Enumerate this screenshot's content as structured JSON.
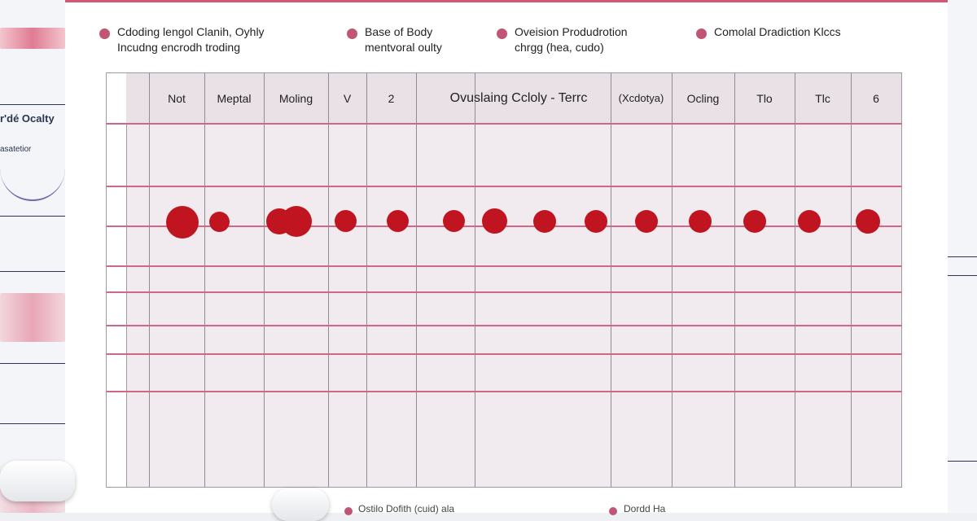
{
  "left_panel": {
    "text_line1": "r'dé Ocalty",
    "text_line2": "asatetior"
  },
  "legend": [
    {
      "line1": "Cdoding lengol Clanih, Oyhly",
      "line2": "Incudng encrodh troding",
      "color": "#c05575"
    },
    {
      "line1": "Base of Body",
      "line2": "mentvoral oulty",
      "color": "#c05575"
    },
    {
      "line1": "Oveision Produdrotion",
      "line2": "chrgg (hea, cudo)",
      "color": "#c05575"
    },
    {
      "line1": "Comolal Dradiction Klccs",
      "line2": "",
      "color": "#c05575"
    }
  ],
  "table": {
    "headers": [
      "Not",
      "Meptal",
      "Moling",
      "V",
      "2",
      "Ovuslaing Ccloly - Terrc",
      "(Xcdotya)",
      "Ocling",
      "Tlo",
      "Tlc",
      "6"
    ],
    "dot_color": "#c01420",
    "row_color": "#d26785"
  },
  "bottom": {
    "text1": "Ostilo Dofith (cuid) ala",
    "text2": "Dordd Ha"
  }
}
